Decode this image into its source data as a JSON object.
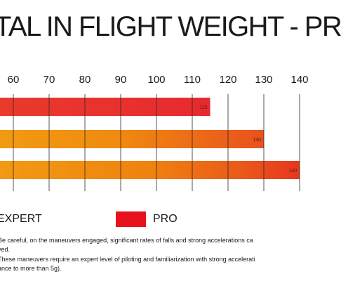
{
  "title": "TAL IN FLIGHT WEIGHT - PR",
  "chart_data": {
    "type": "bar",
    "orientation": "horizontal",
    "x_ticks": [
      60,
      70,
      80,
      90,
      100,
      110,
      120,
      130,
      140
    ],
    "xlim": [
      60,
      140
    ],
    "grid": true,
    "series": [
      {
        "value": 115,
        "label": "115",
        "color": "#e8312f"
      },
      {
        "value": 130,
        "label": "130",
        "color": "#ef7d0f"
      },
      {
        "value": 140,
        "label": "140",
        "color": "#ef7d0f"
      }
    ]
  },
  "legend": [
    {
      "label": "EXPERT",
      "color": "#ef9a0f"
    },
    {
      "label": "PRO",
      "color": "#e8121f"
    }
  ],
  "notes": [
    "Be careful, on the maneuvers engaged, significant rates of falls and strong accelerations ca",
    "ved.",
    "These maneuvers require an expert level of piloting and familiarization with strong accelerati",
    "ance to more than 5g)."
  ]
}
